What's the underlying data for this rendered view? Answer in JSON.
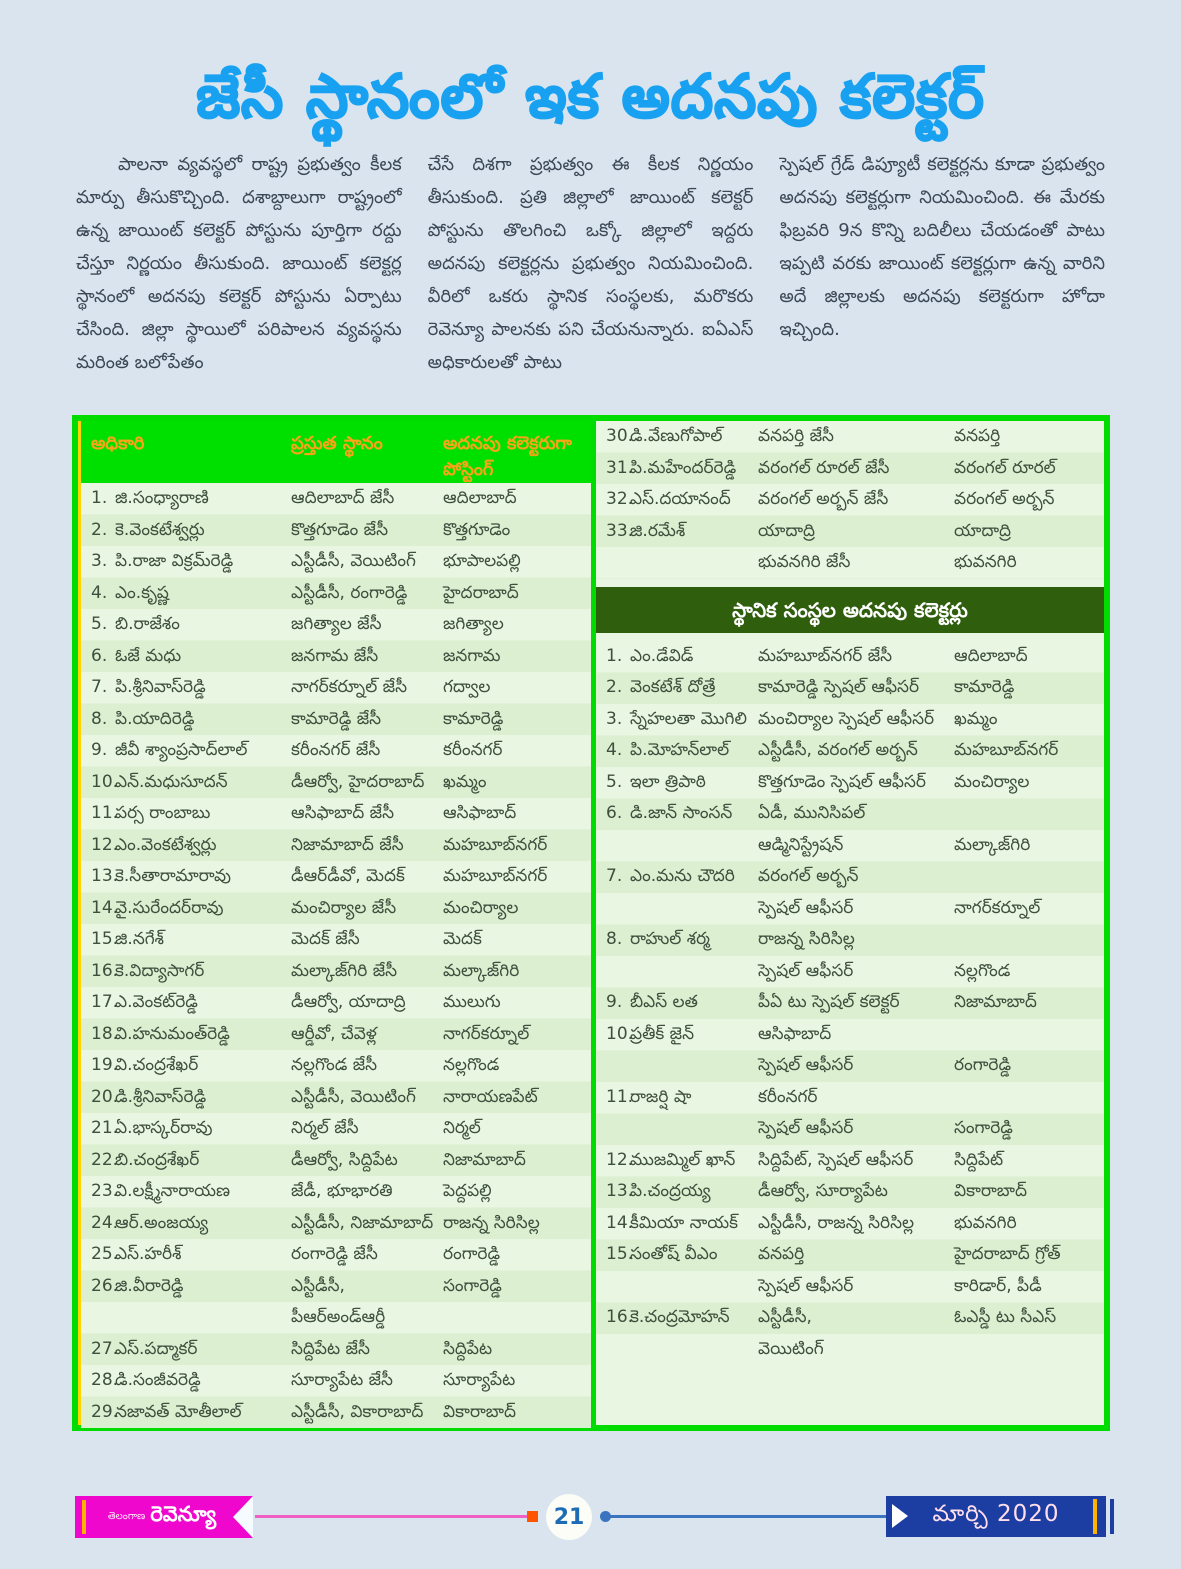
{
  "page_title": "జేసీ స్థానంలో ఇక అదనపు కలెక్టర్",
  "article": {
    "col1": "పాలనా వ్యవస్థలో రాష్ట్ర ప్రభుత్వం కీలక మార్పు తీసుకొచ్చింది. దశాబ్దాలుగా రాష్ట్రంలో ఉన్న జాయింట్ కలెక్టర్ పోస్టును పూర్తిగా రద్దు చేస్తూ నిర్ణయం తీసుకుంది. జాయింట్ కలెక్టర్ల స్థానంలో అదనపు కలెక్టర్ పోస్టును ఏర్పాటు చేసింది.  జిల్లా స్థాయిలో పరిపాలన వ్యవస్థను మరింత బలోపేతం",
    "col2": "చేసే దిశగా ప్రభుత్వం ఈ కీలక నిర్ణయం తీసుకుంది. ప్రతి జిల్లాలో జాయింట్ కలెక్టర్ పోస్టును తొలగించి ఒక్కో జిల్లాలో ఇద్దరు అదనపు కలెక్టర్లను ప్రభుత్వం నియమించింది. వీరిలో ఒకరు స్థానిక సంస్థలకు, మరొకరు రెవెన్యూ పాలనకు పని చేయనున్నారు. ఐఏఎస్ అధికారులతో పాటు",
    "col3": "స్పెషల్ గ్రేడ్ డిప్యూటీ కలెక్టర్లను కూడా ప్రభుత్వం అదనపు కలెక్టర్లుగా నియమించింది. ఈ మేరకు ఫిబ్రవరి 9న కొన్ని బదిలీలు చేయడంతో పాటు ఇప్పటి వరకు జాయింట్ కలెక్టర్లుగా ఉన్న వారిని అదే జిల్లాలకు అదనపు కలెక్టరుగా హోదా ఇచ్చింది."
  },
  "table": {
    "headers": {
      "officer": "అధికారి",
      "current": "ప్రస్తుత స్థానం",
      "posting": "అదనపు కలెక్టరుగా\nపోస్టింగ్"
    },
    "left_rows": [
      {
        "num": "1.",
        "name": "జి.సంధ్యారాణి",
        "current": "ఆదిలాబాద్ జేసీ",
        "posting": "ఆదిలాబాద్"
      },
      {
        "num": "2.",
        "name": "కె.వెంకటేశ్వర్లు",
        "current": "కొత్తగూడెం జేసీ",
        "posting": "కొత్తగూడెం"
      },
      {
        "num": "3.",
        "name": "పి.రాజా విక్రమ్‌రెడ్డి",
        "current": "ఎస్టీడీసీ, వెయిటింగ్",
        "posting": "భూపాలపల్లి"
      },
      {
        "num": "4.",
        "name": "ఎం.కృష్ణ",
        "current": "ఎస్టీడీసీ, రంగారెడ్డి",
        "posting": "హైదరాబాద్"
      },
      {
        "num": "5.",
        "name": "బి.రాజేశం",
        "current": "జగిత్యాల జేసీ",
        "posting": "జగిత్యాల"
      },
      {
        "num": "6.",
        "name": "ఓజే మధు",
        "current": "జనగామ జేసీ",
        "posting": "జనగామ"
      },
      {
        "num": "7.",
        "name": "పి.శ్రీనివాస్‌రెడ్డి",
        "current": "నాగర్‌కర్నూల్ జేసీ",
        "posting": "గద్వాల"
      },
      {
        "num": "8.",
        "name": "పి.యాదిరెడ్డి",
        "current": "కామారెడ్డి జేసీ",
        "posting": "కామారెడ్డి"
      },
      {
        "num": "9.",
        "name": "జీవీ శ్యాంప్రసాద్‌లాల్",
        "current": "కరీంనగర్ జేసీ",
        "posting": "కరీంనగర్"
      },
      {
        "num": "10.",
        "name": "ఎన్.మధుసూదన్",
        "current": "డీఆర్వో, హైదరాబాద్",
        "posting": "ఖమ్మం"
      },
      {
        "num": "11.",
        "name": "పర్స రాంబాబు",
        "current": "ఆసిఫాబాద్ జేసీ",
        "posting": "ఆసిఫాబాద్"
      },
      {
        "num": "12.",
        "name": "ఎం.వెంకటేశ్వర్లు",
        "current": "నిజామాబాద్ జేసీ",
        "posting": "మహబూబ్‌నగర్"
      },
      {
        "num": "13.",
        "name": "కె.సీతారామారావు",
        "current": "డీఆర్‌డీవో, మెదక్",
        "posting": "మహబూబ్‌నగర్"
      },
      {
        "num": "14.",
        "name": "వై.సురేందర్‌రావు",
        "current": "మంచిర్యాల జేసీ",
        "posting": "మంచిర్యాల"
      },
      {
        "num": "15.",
        "name": "జి.నగేశ్",
        "current": "మెదక్ జేసీ",
        "posting": "మెదక్"
      },
      {
        "num": "16.",
        "name": "కె.విద్యాసాగర్",
        "current": "మల్కాజ్‌గిరి జేసీ",
        "posting": "మల్కాజ్‌గిరి"
      },
      {
        "num": "17.",
        "name": "ఎ.వెంకట్‌రెడ్డి",
        "current": "డీఆర్వో, యాదాద్రి",
        "posting": "ములుగు"
      },
      {
        "num": "18.",
        "name": "వి.హనుమంత్‌రెడ్డి",
        "current": "ఆర్డీవో, చేవెళ్ల",
        "posting": "నాగర్‌కర్నూల్"
      },
      {
        "num": "19.",
        "name": "వి.చంద్రశేఖర్",
        "current": "నల్లగొండ జేసీ",
        "posting": "నల్లగొండ"
      },
      {
        "num": "20.",
        "name": "డి.శ్రీనివాస్‌రెడ్డి",
        "current": "ఎస్టీడీసీ, వెయిటింగ్",
        "posting": "నారాయణపేట్"
      },
      {
        "num": "21.",
        "name": "ఏ.భాస్కర్‌రావు",
        "current": "నిర్మల్ జేసీ",
        "posting": "నిర్మల్"
      },
      {
        "num": "22.",
        "name": "బి.చంద్రశేఖర్",
        "current": "డీఆర్వో, సిద్దిపేట",
        "posting": "నిజామాబాద్"
      },
      {
        "num": "23.",
        "name": "వి.లక్ష్మీనారాయణ",
        "current": "జేడీ, భూభారతి",
        "posting": "పెద్దపల్లి"
      },
      {
        "num": "24.",
        "name": "ఆర్.అంజయ్య",
        "current": "ఎస్టీడీసీ, నిజామాబాద్",
        "posting": "రాజన్న సిరిసిల్ల"
      },
      {
        "num": "25.",
        "name": "ఎస్.హరీశ్",
        "current": "రంగారెడ్డి జేసీ",
        "posting": "రంగారెడ్డి"
      },
      {
        "num": "26.",
        "name": "జి.వీరారెడ్డి",
        "current": "ఎస్టీడీసీ, పీఆర్‌అండ్‌ఆర్డీ",
        "posting": "సంగారెడ్డి"
      },
      {
        "num": "27.",
        "name": "ఎస్.పద్మాకర్",
        "current": "సిద్దిపేట జేసీ",
        "posting": "సిద్దిపేట"
      },
      {
        "num": "28.",
        "name": "డి.సంజీవరెడ్డి",
        "current": "సూర్యాపేట జేసీ",
        "posting": "సూర్యాపేట"
      },
      {
        "num": "29.",
        "name": "నజావత్ మోతీలాల్",
        "current": "ఎస్టీడీసీ, వికారాబాద్",
        "posting": "వికారాబాద్"
      }
    ],
    "right_rows": [
      {
        "num": "30.",
        "name": "డి.వేణుగోపాల్",
        "current": "వనపర్తి జేసీ",
        "posting": "వనపర్తి"
      },
      {
        "num": "31.",
        "name": "పి.మహేందర్‌రెడ్డి",
        "current": "వరంగల్ రూరల్ జేసీ",
        "posting": "వరంగల్ రూరల్"
      },
      {
        "num": "32.",
        "name": "ఎస్.దయానంద్",
        "current": "వరంగల్ అర్బన్ జేసీ",
        "posting": "వరంగల్ అర్బన్"
      },
      {
        "num": "33.",
        "name": "జి.రమేశ్",
        "current": "యాదాద్రి\nభువనగిరి జేసీ",
        "posting": "యాదాద్రి\nభువనగిరి"
      }
    ],
    "local_header": "స్థానిక సంస్థల అదనపు కలెక్టర్లు",
    "local_rows": [
      {
        "num": "1.",
        "name": "ఎం.డేవిడ్",
        "current": "మహబూబ్‌నగర్ జేసీ",
        "posting": "ఆదిలాబాద్"
      },
      {
        "num": "2.",
        "name": "వెంకటేశ్ దోత్రే",
        "current": "కామారెడ్డి స్పెషల్ ఆఫీసర్",
        "posting": "కామారెడ్డి"
      },
      {
        "num": "3.",
        "name": "స్నేహలతా మొగిలి",
        "current": "మంచిర్యాల స్పెషల్ ఆఫీసర్",
        "posting": "ఖమ్మం"
      },
      {
        "num": "4.",
        "name": "పి.మోహన్‌లాల్",
        "current": "ఎస్టీడీసీ, వరంగల్ అర్బన్",
        "posting": "మహబూబ్‌నగర్"
      },
      {
        "num": "5.",
        "name": "ఇలా త్రిపాఠి",
        "current": "కొత్తగూడెం స్పెషల్ ఆఫీసర్",
        "posting": "మంచిర్యాల"
      },
      {
        "num": "6.",
        "name": "డి.జాన్ సాంసన్",
        "current": "ఏడీ, మునిసిపల్\nఆడ్మినిస్ట్రేషన్",
        "posting": "మల్కాజ్‌గిరి",
        "pb": true
      },
      {
        "num": "7.",
        "name": "ఎం.మను చౌదరి",
        "current": "వరంగల్ అర్బన్\nస్పెషల్ ఆఫీసర్",
        "posting": "నాగర్‌కర్నూల్",
        "pb": true
      },
      {
        "num": "8.",
        "name": "రాహుల్ శర్మ",
        "current": "రాజన్న సిరిసిల్ల\nస్పెషల్ ఆఫీసర్",
        "posting": "నల్లగొండ",
        "pb": true
      },
      {
        "num": "9.",
        "name": "బీఎస్ లత",
        "current": "పీఏ టు స్పెషల్ కలెక్టర్",
        "posting": "నిజామాబాద్"
      },
      {
        "num": "10.",
        "name": "ప్రతీక్ జైన్",
        "current": "ఆసిఫాబాద్\nస్పెషల్ ఆఫీసర్",
        "posting": "రంగారెడ్డి",
        "pb": true
      },
      {
        "num": "11.",
        "name": "రాజర్షి షా",
        "current": "కరీంనగర్\nస్పెషల్ ఆఫీసర్",
        "posting": "సంగారెడ్డి",
        "pb": true
      },
      {
        "num": "12.",
        "name": "ముజమ్మిల్ ఖాన్",
        "current": "సిద్దిపేట్, స్పెషల్ ఆఫీసర్",
        "posting": "సిద్దిపేట్"
      },
      {
        "num": "13.",
        "name": "పి.చంద్రయ్య",
        "current": "డీఆర్వో, సూర్యాపేట",
        "posting": "వికారాబాద్"
      },
      {
        "num": "14.",
        "name": "కీమియా నాయక్",
        "current": "ఎస్టీడీసీ, రాజన్న సిరిసిల్ల",
        "posting": "భువనగిరి"
      },
      {
        "num": "15.",
        "name": "సంతోష్ వీఎం",
        "current": "వనపర్తి\nస్పెషల్ ఆఫీసర్",
        "posting": "హైదరాబాద్ గ్రోత్\nకారిడార్, పీడీ"
      },
      {
        "num": "16.",
        "name": "కె.చంద్రమోహన్",
        "current": "ఎస్టీడీసీ,\nవెయిటింగ్",
        "posting": "ఓఎస్డీ టు సీఎస్"
      }
    ]
  },
  "footer": {
    "brand_small": "తెలంగాణ",
    "brand_big": "రెవెన్యూ",
    "page_number": "21",
    "issue": "మార్చి 2020"
  },
  "colors": {
    "page_bg": "#d9e4ef",
    "title_blue": "#18a1f1",
    "table_green": "#00dc00",
    "header_orange": "#f7a416",
    "band_dark_green": "#2f5e0d",
    "row_light": "#e9f6e1",
    "row_dark": "#dcefd1",
    "brand_magenta": "#ef07cd",
    "issue_blue": "#1c3ea2",
    "stripe_yellow": "#ffb200"
  }
}
